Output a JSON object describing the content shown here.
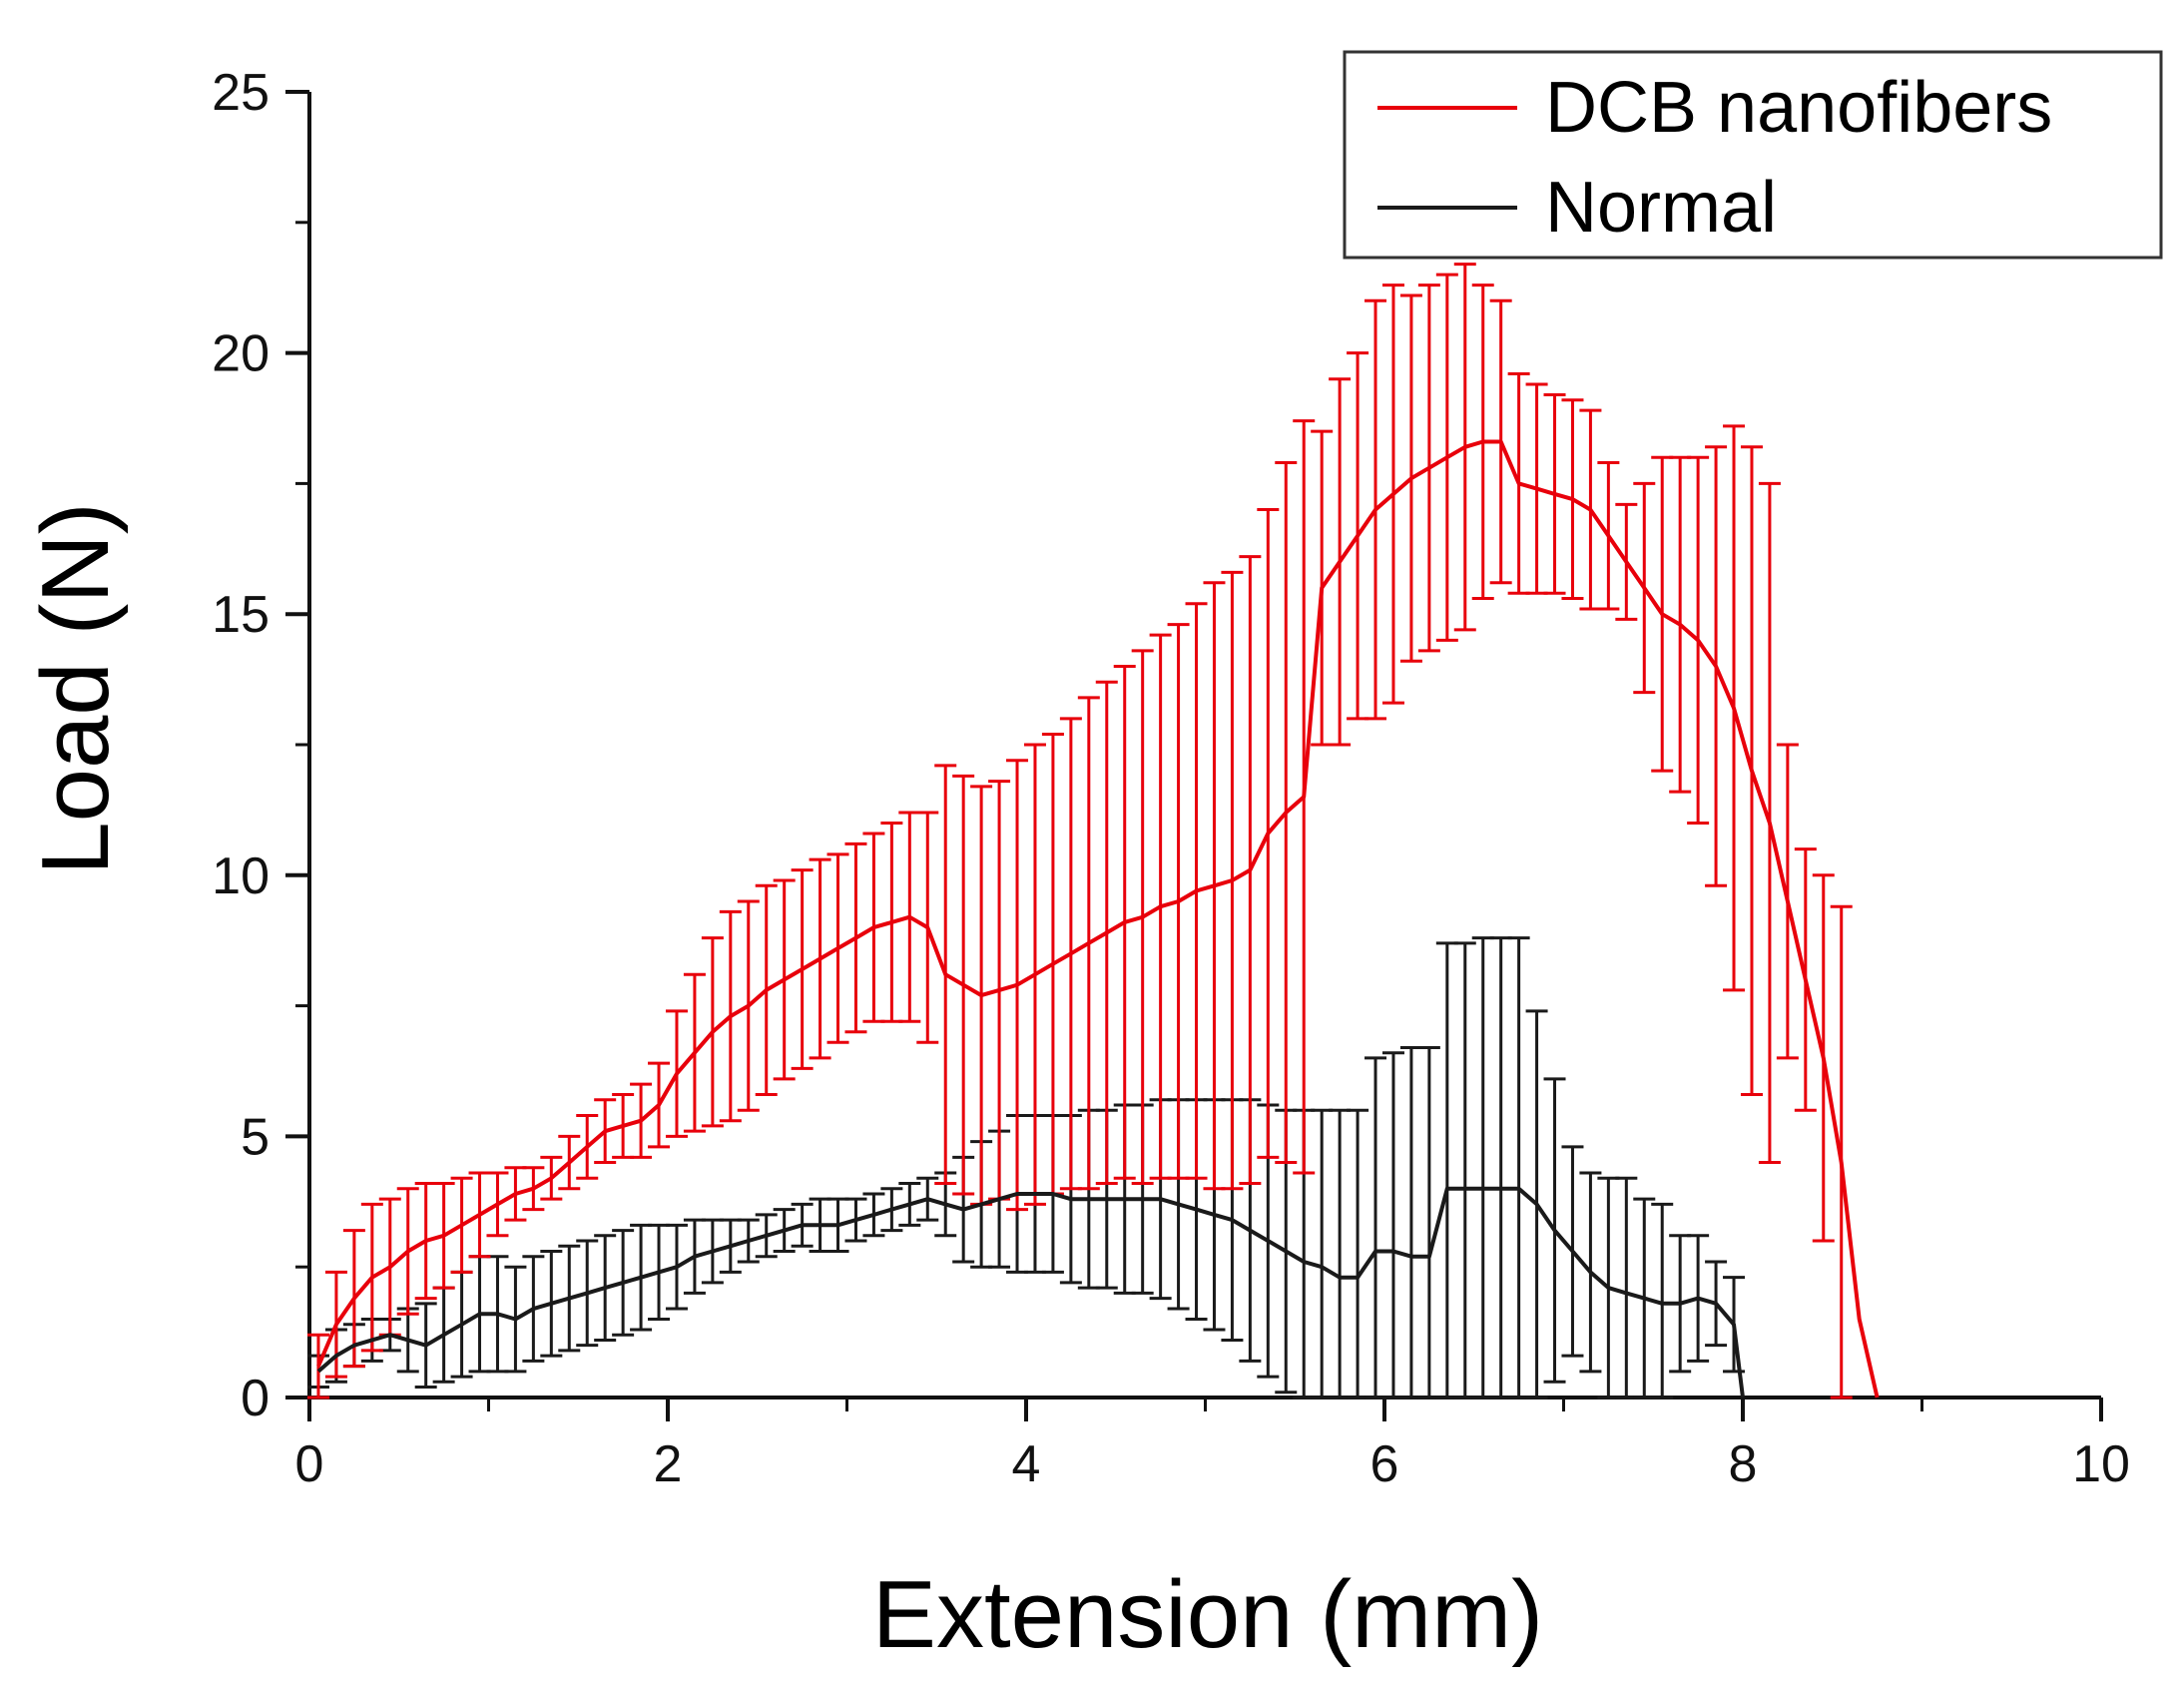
{
  "chart_data": {
    "type": "line",
    "title": "",
    "xlabel": "Extension (mm)",
    "ylabel": "Load (N)",
    "xlim": [
      0,
      10
    ],
    "ylim": [
      0,
      25
    ],
    "xticks": [
      0,
      2,
      4,
      6,
      8,
      10
    ],
    "xtick_labels": [
      "0",
      "2",
      "4",
      "6",
      "8",
      "10"
    ],
    "yticks": [
      0,
      5,
      10,
      15,
      20,
      25
    ],
    "ytick_labels": [
      "0",
      "5",
      "10",
      "15",
      "20",
      "25"
    ],
    "grid": false,
    "legend_position": "top-right",
    "error_bars": true,
    "series": [
      {
        "name": "DCB nanofibers",
        "color": "#e8000b",
        "x": [
          0.05,
          0.15,
          0.25,
          0.35,
          0.45,
          0.55,
          0.65,
          0.75,
          0.85,
          0.95,
          1.05,
          1.15,
          1.25,
          1.35,
          1.45,
          1.55,
          1.65,
          1.75,
          1.85,
          1.95,
          2.05,
          2.15,
          2.25,
          2.35,
          2.45,
          2.55,
          2.65,
          2.75,
          2.85,
          2.95,
          3.05,
          3.15,
          3.25,
          3.35,
          3.45,
          3.55,
          3.65,
          3.75,
          3.85,
          3.95,
          4.05,
          4.15,
          4.25,
          4.35,
          4.45,
          4.55,
          4.65,
          4.75,
          4.85,
          4.95,
          5.05,
          5.15,
          5.25,
          5.35,
          5.45,
          5.55,
          5.65,
          5.75,
          5.85,
          5.95,
          6.05,
          6.15,
          6.25,
          6.35,
          6.45,
          6.55,
          6.65,
          6.75,
          6.85,
          6.95,
          7.05,
          7.15,
          7.25,
          7.35,
          7.45,
          7.55,
          7.65,
          7.75,
          7.85,
          7.95,
          8.05,
          8.15,
          8.25,
          8.35,
          8.45,
          8.55,
          8.65,
          8.75
        ],
        "y": [
          0.6,
          1.4,
          1.9,
          2.3,
          2.5,
          2.8,
          3.0,
          3.1,
          3.3,
          3.5,
          3.7,
          3.9,
          4.0,
          4.2,
          4.5,
          4.8,
          5.1,
          5.2,
          5.3,
          5.6,
          6.2,
          6.6,
          7.0,
          7.3,
          7.5,
          7.8,
          8.0,
          8.2,
          8.4,
          8.6,
          8.8,
          9.0,
          9.1,
          9.2,
          9.0,
          8.1,
          7.9,
          7.7,
          7.8,
          7.9,
          8.1,
          8.3,
          8.5,
          8.7,
          8.9,
          9.1,
          9.2,
          9.4,
          9.5,
          9.7,
          9.8,
          9.9,
          10.1,
          10.8,
          11.2,
          11.5,
          15.5,
          16.0,
          16.5,
          17.0,
          17.3,
          17.6,
          17.8,
          18.0,
          18.2,
          18.3,
          18.3,
          17.5,
          17.4,
          17.3,
          17.2,
          17.0,
          16.5,
          16.0,
          15.5,
          15.0,
          14.8,
          14.5,
          14.0,
          13.2,
          12.0,
          11.0,
          9.5,
          8.0,
          6.5,
          4.5,
          1.5,
          0.0
        ],
        "error": [
          0.6,
          1.0,
          1.3,
          1.4,
          1.3,
          1.2,
          1.1,
          1.0,
          0.9,
          0.8,
          0.6,
          0.5,
          0.4,
          0.4,
          0.5,
          0.6,
          0.6,
          0.6,
          0.7,
          0.8,
          1.2,
          1.5,
          1.8,
          2.0,
          2.0,
          2.0,
          1.9,
          1.9,
          1.9,
          1.8,
          1.8,
          1.8,
          1.9,
          2.0,
          2.2,
          4.0,
          4.0,
          4.0,
          4.0,
          4.3,
          4.4,
          4.4,
          4.5,
          4.7,
          4.8,
          4.9,
          5.1,
          5.2,
          5.3,
          5.5,
          5.8,
          5.9,
          6.0,
          6.2,
          6.7,
          7.2,
          3.0,
          3.5,
          3.5,
          4.0,
          4.0,
          3.5,
          3.5,
          3.5,
          3.5,
          3.0,
          2.7,
          2.1,
          2.0,
          1.9,
          1.9,
          1.9,
          1.4,
          1.1,
          2.0,
          3.0,
          3.2,
          3.5,
          4.2,
          5.4,
          6.2,
          6.5,
          3.0,
          2.5,
          3.5,
          4.9,
          0.0,
          0.0
        ]
      },
      {
        "name": "Normal",
        "color": "#1a1a1a",
        "x": [
          0.05,
          0.15,
          0.25,
          0.35,
          0.45,
          0.55,
          0.65,
          0.75,
          0.85,
          0.95,
          1.05,
          1.15,
          1.25,
          1.35,
          1.45,
          1.55,
          1.65,
          1.75,
          1.85,
          1.95,
          2.05,
          2.15,
          2.25,
          2.35,
          2.45,
          2.55,
          2.65,
          2.75,
          2.85,
          2.95,
          3.05,
          3.15,
          3.25,
          3.35,
          3.45,
          3.55,
          3.65,
          3.75,
          3.85,
          3.95,
          4.05,
          4.15,
          4.25,
          4.35,
          4.45,
          4.55,
          4.65,
          4.75,
          4.85,
          4.95,
          5.05,
          5.15,
          5.25,
          5.35,
          5.45,
          5.55,
          5.65,
          5.75,
          5.85,
          5.95,
          6.05,
          6.15,
          6.25,
          6.35,
          6.45,
          6.55,
          6.65,
          6.75,
          6.85,
          6.95,
          7.05,
          7.15,
          7.25,
          7.35,
          7.45,
          7.55,
          7.65,
          7.75,
          7.85,
          7.95,
          8.0
        ],
        "y": [
          0.5,
          0.8,
          1.0,
          1.1,
          1.2,
          1.1,
          1.0,
          1.2,
          1.4,
          1.6,
          1.6,
          1.5,
          1.7,
          1.8,
          1.9,
          2.0,
          2.1,
          2.2,
          2.3,
          2.4,
          2.5,
          2.7,
          2.8,
          2.9,
          3.0,
          3.1,
          3.2,
          3.3,
          3.3,
          3.3,
          3.4,
          3.5,
          3.6,
          3.7,
          3.8,
          3.7,
          3.6,
          3.7,
          3.8,
          3.9,
          3.9,
          3.9,
          3.8,
          3.8,
          3.8,
          3.8,
          3.8,
          3.8,
          3.7,
          3.6,
          3.5,
          3.4,
          3.2,
          3.0,
          2.8,
          2.6,
          2.5,
          2.3,
          2.3,
          2.8,
          2.8,
          2.7,
          2.7,
          4.0,
          4.0,
          4.0,
          4.0,
          4.0,
          3.7,
          3.2,
          2.8,
          2.4,
          2.1,
          2.0,
          1.9,
          1.8,
          1.8,
          1.9,
          1.8,
          1.4,
          0.0
        ]
      }
    ],
    "normal_error": [
      0.3,
      0.5,
      0.4,
      0.4,
      0.3,
      0.6,
      0.8,
      0.9,
      1.0,
      1.1,
      1.1,
      1.0,
      1.0,
      1.0,
      1.0,
      1.0,
      1.0,
      1.0,
      1.0,
      0.9,
      0.8,
      0.7,
      0.6,
      0.5,
      0.4,
      0.4,
      0.4,
      0.4,
      0.5,
      0.5,
      0.4,
      0.4,
      0.4,
      0.4,
      0.4,
      0.6,
      1.0,
      1.2,
      1.3,
      1.5,
      1.5,
      1.5,
      1.6,
      1.7,
      1.7,
      1.8,
      1.8,
      1.9,
      2.0,
      2.1,
      2.2,
      2.3,
      2.5,
      2.6,
      2.7,
      2.9,
      3.0,
      3.2,
      3.2,
      3.7,
      3.8,
      4.0,
      4.0,
      4.7,
      4.7,
      4.8,
      4.8,
      4.8,
      3.7,
      2.9,
      2.0,
      1.9,
      2.1,
      2.2,
      1.9,
      1.9,
      1.3,
      1.2,
      0.8,
      0.9,
      0.0
    ]
  }
}
